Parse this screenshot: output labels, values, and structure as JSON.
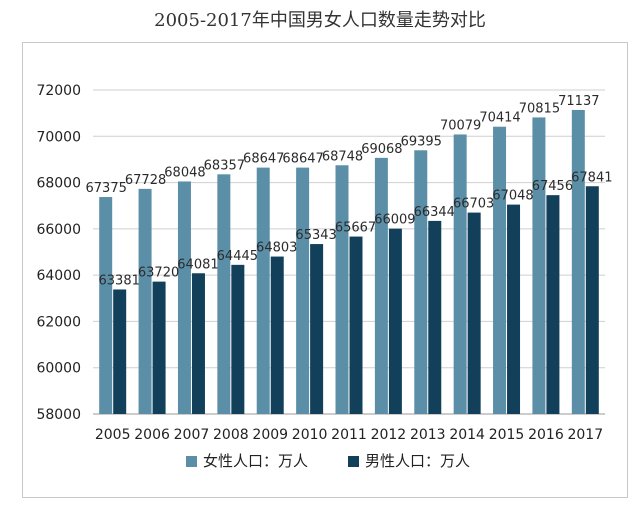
{
  "chart_data": {
    "type": "bar",
    "title": "2005-2017年中国男女人口数量走势对比",
    "categories": [
      "2005",
      "2006",
      "2007",
      "2008",
      "2009",
      "2010",
      "2011",
      "2012",
      "2013",
      "2014",
      "2015",
      "2016",
      "2017"
    ],
    "series": [
      {
        "name": "女性人口：万人",
        "color": "#5b8fa8",
        "values": [
          67375,
          67728,
          68048,
          68357,
          68647,
          68647,
          68748,
          69068,
          69395,
          70079,
          70414,
          70815,
          71137
        ]
      },
      {
        "name": "男性人口：万人",
        "color": "#123f5a",
        "values": [
          63381,
          63720,
          64081,
          64445,
          64803,
          65343,
          65667,
          66009,
          66344,
          66703,
          67048,
          67456,
          67841
        ]
      }
    ],
    "ylim": [
      58000,
      72000
    ],
    "yticks": [
      58000,
      60000,
      62000,
      64000,
      66000,
      68000,
      70000,
      72000
    ],
    "grid": true,
    "legend": "bottom",
    "xlabel": "",
    "ylabel": ""
  }
}
